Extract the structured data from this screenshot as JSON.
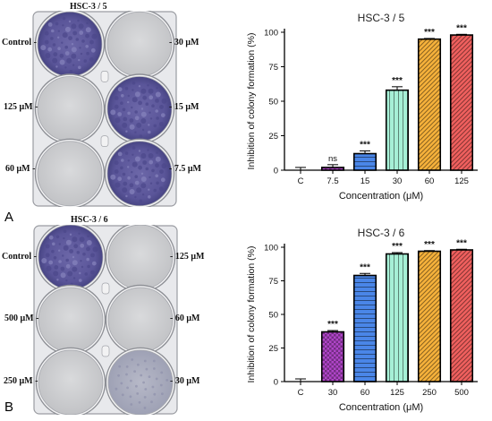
{
  "panels": [
    {
      "letter": "A",
      "plate": {
        "title": "HSC-3 / 5",
        "left_labels": [
          "Control -",
          "125 μM -",
          "60 μM -"
        ],
        "right_labels": [
          "- 30 μM",
          "- 15 μM",
          "- 7.5 μM"
        ],
        "wells": [
          {
            "stain": "heavy"
          },
          {
            "stain": "none"
          },
          {
            "stain": "none"
          },
          {
            "stain": "heavy"
          },
          {
            "stain": "none"
          },
          {
            "stain": "heavy"
          }
        ]
      }
    },
    {
      "letter": "B",
      "plate": {
        "title": "HSC-3 / 6",
        "left_labels": [
          "Control -",
          "500 μM -",
          "250 μM -"
        ],
        "right_labels": [
          "- 125 μM",
          "- 60 μM",
          "- 30 μM"
        ],
        "wells": [
          {
            "stain": "heavy"
          },
          {
            "stain": "none"
          },
          {
            "stain": "none"
          },
          {
            "stain": "none"
          },
          {
            "stain": "none"
          },
          {
            "stain": "light"
          }
        ]
      }
    }
  ],
  "chart_data": [
    {
      "type": "bar",
      "title": "HSC-3 / 5",
      "xlabel": "Concentration (μM)",
      "ylabel": "Inhibition of colony formation (%)",
      "ylim": [
        0,
        100
      ],
      "yticks": [
        0,
        25,
        50,
        75,
        100
      ],
      "categories": [
        "C",
        "7.5",
        "15",
        "30",
        "60",
        "125"
      ],
      "values": [
        0,
        2,
        12,
        58,
        95,
        98
      ],
      "errors": [
        2,
        2,
        2,
        2.5,
        0.5,
        0.5
      ],
      "significance": [
        "",
        "ns",
        "***",
        "***",
        "***",
        "***"
      ],
      "colors": [
        "#ffffff",
        "#b045c9",
        "#4a86e8",
        "#a6f0d6",
        "#f7b23b",
        "#f0605e"
      ],
      "patterns": [
        "none",
        "check",
        "hlines",
        "vlines",
        "diag",
        "diag"
      ],
      "grid": false
    },
    {
      "type": "bar",
      "title": "HSC-3 / 6",
      "xlabel": "Concentration (μM)",
      "ylabel": "Inhibition of colony formation (%)",
      "ylim": [
        0,
        100
      ],
      "yticks": [
        0,
        25,
        50,
        75,
        100
      ],
      "categories": [
        "C",
        "30",
        "60",
        "125",
        "250",
        "500"
      ],
      "values": [
        0,
        37,
        79,
        95,
        97,
        98
      ],
      "errors": [
        2,
        1,
        1.5,
        1,
        0.5,
        0.5
      ],
      "significance": [
        "",
        "***",
        "***",
        "***",
        "***",
        "***"
      ],
      "colors": [
        "#ffffff",
        "#b045c9",
        "#4a86e8",
        "#a6f0d6",
        "#f7b23b",
        "#f0605e"
      ],
      "patterns": [
        "none",
        "check",
        "hlines",
        "vlines",
        "diag",
        "diag"
      ],
      "grid": false
    }
  ]
}
